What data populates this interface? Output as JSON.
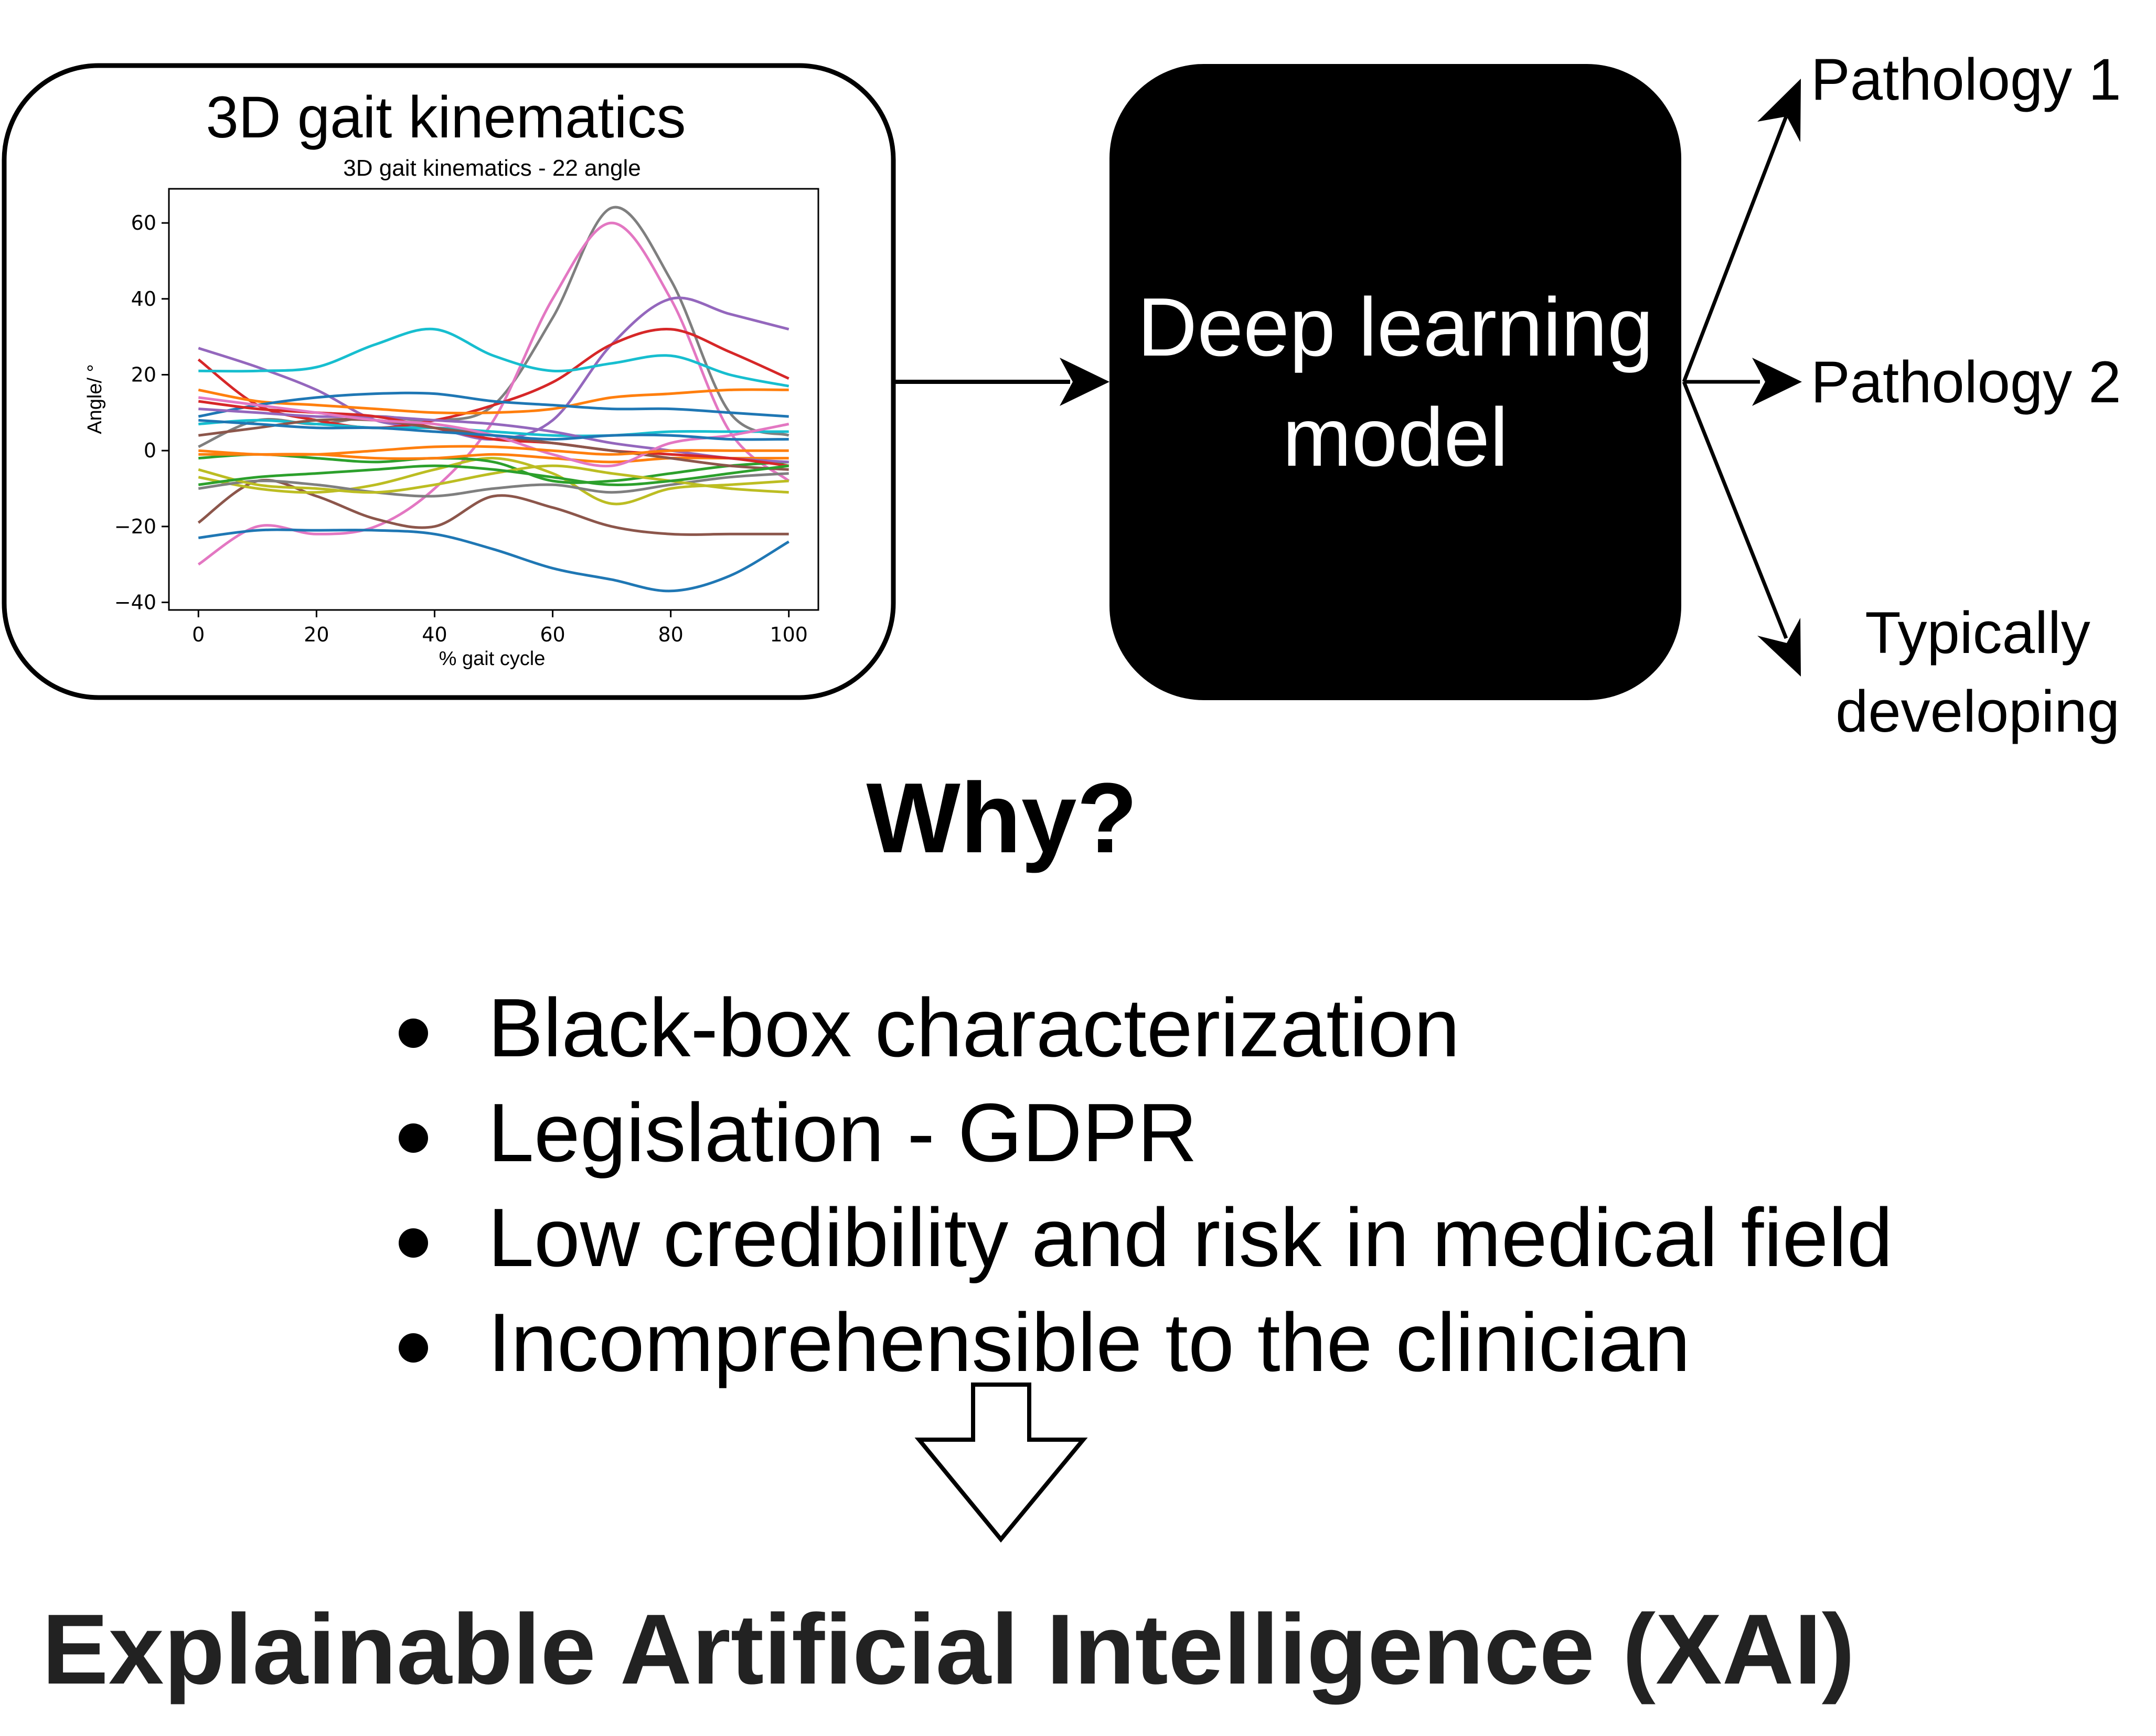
{
  "input_box": {
    "title": "3D gait kinematics"
  },
  "model_box": {
    "line1": "Deep learning",
    "line2": "model"
  },
  "outputs": {
    "pathology_1": "Pathology 1",
    "pathology_2": "Pathology 2",
    "typical_line1": "Typically",
    "typical_line2": "developing"
  },
  "question": "Why?",
  "reasons": [
    "Black-box characterization",
    "Legislation - GDPR",
    "Low credibility and risk in medical field",
    "Incomprehensible to the clinician"
  ],
  "conclusion": "Explainable Artificial Intelligence (XAI)",
  "chart_data": {
    "type": "line",
    "title": "3D gait kinematics - 22 angle",
    "xlabel": "% gait cycle",
    "ylabel": "Angle/ °",
    "xlim": [
      -5,
      105
    ],
    "ylim": [
      -42,
      69
    ],
    "xticks": [
      0,
      20,
      40,
      60,
      80,
      100
    ],
    "yticks": [
      -40,
      -20,
      0,
      20,
      40,
      60
    ],
    "tick_labels_x": [
      "0",
      "20",
      "40",
      "60",
      "80",
      "100"
    ],
    "tick_labels_y": [
      "−40",
      "−20",
      "0",
      "20",
      "40",
      "60"
    ],
    "grid": false,
    "x": [
      0,
      10,
      20,
      30,
      40,
      50,
      60,
      70,
      80,
      90,
      100
    ],
    "series": [
      {
        "color": "#7f7f7f",
        "values": [
          1,
          8,
          7,
          9,
          8,
          12,
          35,
          64,
          45,
          10,
          4
        ]
      },
      {
        "color": "#e377c2",
        "values": [
          -30,
          -20,
          -22,
          -20,
          -10,
          8,
          40,
          60,
          40,
          5,
          -8
        ]
      },
      {
        "color": "#9467bd",
        "values": [
          27,
          22,
          16,
          8,
          6,
          3,
          8,
          28,
          40,
          36,
          32
        ]
      },
      {
        "color": "#d62728",
        "values": [
          24,
          12,
          8,
          6,
          8,
          12,
          18,
          28,
          32,
          26,
          19
        ]
      },
      {
        "color": "#17becf",
        "values": [
          21,
          21,
          22,
          28,
          32,
          25,
          21,
          23,
          25,
          20,
          17
        ]
      },
      {
        "color": "#ff7f0e",
        "values": [
          16,
          13,
          12,
          11,
          10,
          10,
          11,
          14,
          15,
          16,
          16
        ]
      },
      {
        "color": "#1f77b4",
        "values": [
          9,
          12,
          14,
          15,
          15,
          13,
          12,
          11,
          11,
          10,
          9
        ]
      },
      {
        "color": "#8c564b",
        "values": [
          -19,
          -8,
          -12,
          -18,
          -20,
          -12,
          -15,
          -20,
          -22,
          -22,
          -22
        ]
      },
      {
        "color": "#1f77b4",
        "values": [
          -23,
          -21,
          -21,
          -21,
          -22,
          -26,
          -31,
          -34,
          -37,
          -33,
          -24
        ]
      },
      {
        "color": "#bcbd22",
        "values": [
          -7,
          -10,
          -11,
          -9,
          -5,
          -2,
          -6,
          -14,
          -10,
          -9,
          -8
        ]
      },
      {
        "color": "#2ca02c",
        "values": [
          -2,
          -1,
          -2,
          -3,
          -2,
          -3,
          -8,
          -8,
          -6,
          -4,
          -3
        ]
      },
      {
        "color": "#7f7f7f",
        "values": [
          -10,
          -8,
          -9,
          -11,
          -12,
          -10,
          -9,
          -11,
          -9,
          -7,
          -6
        ]
      },
      {
        "color": "#ff7f0e",
        "values": [
          -1,
          -1,
          -1,
          -2,
          -2,
          -1,
          -2,
          -3,
          -2,
          -2,
          -2
        ]
      },
      {
        "color": "#17becf",
        "values": [
          7,
          8,
          7,
          6,
          6,
          5,
          4,
          4,
          5,
          5,
          5
        ]
      },
      {
        "color": "#9467bd",
        "values": [
          11,
          10,
          9,
          9,
          8,
          7,
          5,
          2,
          0,
          -2,
          -3
        ]
      },
      {
        "color": "#d62728",
        "values": [
          13,
          11,
          10,
          9,
          6,
          3,
          2,
          0,
          -1,
          -2,
          -4
        ]
      },
      {
        "color": "#8c564b",
        "values": [
          4,
          6,
          8,
          8,
          6,
          4,
          2,
          0,
          -2,
          -4,
          -5
        ]
      },
      {
        "color": "#e377c2",
        "values": [
          14,
          12,
          10,
          8,
          7,
          4,
          -1,
          -4,
          2,
          4,
          7
        ]
      },
      {
        "color": "#bcbd22",
        "values": [
          -5,
          -9,
          -10,
          -11,
          -9,
          -6,
          -4,
          -6,
          -8,
          -10,
          -11
        ]
      },
      {
        "color": "#2ca02c",
        "values": [
          -9,
          -7,
          -6,
          -5,
          -4,
          -5,
          -7,
          -9,
          -8,
          -6,
          -4
        ]
      },
      {
        "color": "#1f77b4",
        "values": [
          8,
          7,
          6,
          6,
          5,
          4,
          3,
          4,
          4,
          3,
          3
        ]
      },
      {
        "color": "#ff7f0e",
        "values": [
          0,
          -1,
          -1,
          0,
          1,
          1,
          0,
          -1,
          0,
          0,
          0
        ]
      }
    ]
  }
}
